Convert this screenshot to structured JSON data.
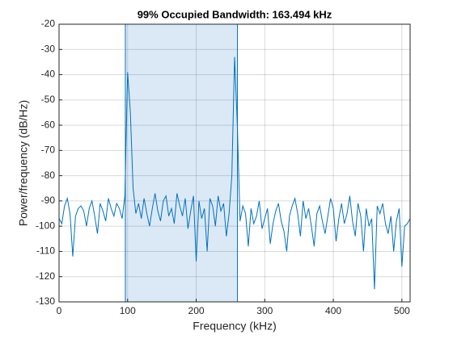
{
  "chart_data": {
    "type": "line",
    "title": "99% Occupied Bandwidth: 163.494 kHz",
    "xlabel": "Frequency (kHz)",
    "ylabel": "Power/frequency (dB/Hz)",
    "xlim": [
      0,
      512
    ],
    "xticks": [
      0,
      100,
      200,
      300,
      400,
      500
    ],
    "ylim": [
      -130,
      -20
    ],
    "yticks": [
      -130,
      -120,
      -110,
      -100,
      -90,
      -80,
      -70,
      -60,
      -50,
      -40,
      -30,
      -20
    ],
    "grid": true,
    "band": [
      96.7,
      260.2
    ],
    "band_color": "#dbe9f6",
    "band_edge_color": "#0072bd",
    "x": [
      0,
      4,
      8,
      12,
      16,
      20,
      24,
      28,
      32,
      36,
      40,
      44,
      48,
      52,
      56,
      60,
      64,
      68,
      72,
      76,
      80,
      84,
      88,
      92,
      96,
      100,
      104,
      108,
      112,
      116,
      120,
      124,
      128,
      132,
      136,
      140,
      144,
      148,
      152,
      156,
      160,
      164,
      168,
      172,
      176,
      180,
      184,
      188,
      192,
      196,
      200,
      204,
      208,
      212,
      216,
      220,
      224,
      228,
      232,
      236,
      240,
      244,
      248,
      252,
      256,
      260,
      264,
      268,
      272,
      276,
      280,
      284,
      288,
      292,
      296,
      300,
      304,
      308,
      312,
      316,
      320,
      324,
      328,
      332,
      336,
      340,
      344,
      348,
      352,
      356,
      360,
      364,
      368,
      372,
      376,
      380,
      384,
      388,
      392,
      396,
      400,
      404,
      408,
      412,
      416,
      420,
      424,
      428,
      432,
      436,
      440,
      444,
      448,
      452,
      456,
      460,
      464,
      468,
      472,
      476,
      480,
      484,
      488,
      492,
      496,
      500,
      504,
      508,
      512
    ],
    "series": [
      {
        "color": "#0072bd",
        "values": [
          -97,
          -99,
          -92,
          -89,
          -95,
          -112,
          -96,
          -93,
          -92,
          -94,
          -100,
          -93,
          -90,
          -96,
          -103,
          -91,
          -94,
          -98,
          -89,
          -93,
          -96,
          -91,
          -93,
          -97,
          -88,
          -39,
          -55,
          -85,
          -95,
          -91,
          -97,
          -89,
          -95,
          -100,
          -93,
          -87,
          -94,
          -98,
          -90,
          -88,
          -96,
          -93,
          -99,
          -87,
          -92,
          -96,
          -89,
          -101,
          -94,
          -88,
          -114,
          -90,
          -97,
          -93,
          -110,
          -89,
          -92,
          -100,
          -88,
          -94,
          -91,
          -104,
          -95,
          -80,
          -33,
          -60,
          -98,
          -92,
          -95,
          -108,
          -93,
          -99,
          -96,
          -90,
          -101,
          -97,
          -93,
          -107,
          -99,
          -94,
          -91,
          -98,
          -102,
          -110,
          -96,
          -92,
          -89,
          -95,
          -104,
          -90,
          -97,
          -93,
          -100,
          -108,
          -95,
          -92,
          -98,
          -103,
          -96,
          -89,
          -93,
          -106,
          -97,
          -91,
          -99,
          -95,
          -88,
          -98,
          -104,
          -91,
          -96,
          -110,
          -93,
          -100,
          -97,
          -125,
          -92,
          -95,
          -91,
          -99,
          -103,
          -96,
          -110,
          -98,
          -93,
          -116,
          -100,
          -99,
          -97
        ]
      }
    ]
  }
}
